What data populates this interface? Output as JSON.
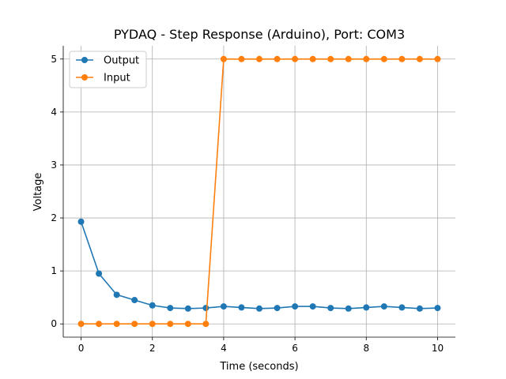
{
  "chart_data": {
    "type": "line",
    "title": "PYDAQ - Step Response (Arduino), Port: COM3",
    "xlabel": "Time (seconds)",
    "ylabel": "Voltage",
    "xlim": [
      -0.5,
      10.5
    ],
    "ylim": [
      -0.25,
      5.25
    ],
    "xticks": [
      0,
      2,
      4,
      6,
      8,
      10
    ],
    "yticks": [
      0,
      1,
      2,
      3,
      4,
      5
    ],
    "grid": true,
    "legend_position": "top-left",
    "x": [
      0,
      0.5,
      1,
      1.5,
      2,
      2.5,
      3,
      3.5,
      4,
      4.5,
      5,
      5.5,
      6,
      6.5,
      7,
      7.5,
      8,
      8.5,
      9,
      9.5,
      10
    ],
    "series": [
      {
        "name": "Output",
        "color": "#1f77b4",
        "values": [
          1.93,
          0.95,
          0.55,
          0.45,
          0.35,
          0.3,
          0.29,
          0.3,
          0.33,
          0.31,
          0.29,
          0.3,
          0.33,
          0.33,
          0.3,
          0.29,
          0.31,
          0.33,
          0.31,
          0.29,
          0.3
        ]
      },
      {
        "name": "Input",
        "color": "#ff7f0e",
        "values": [
          0,
          0,
          0,
          0,
          0,
          0,
          0,
          0,
          5,
          5,
          5,
          5,
          5,
          5,
          5,
          5,
          5,
          5,
          5,
          5,
          5
        ]
      }
    ]
  }
}
